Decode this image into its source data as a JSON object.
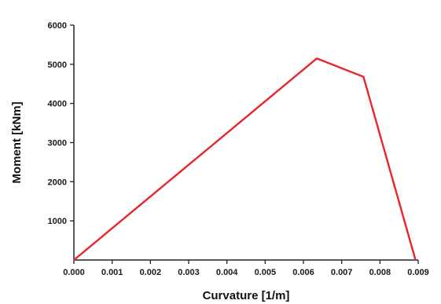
{
  "chart_data": {
    "type": "line",
    "title": "",
    "xlabel": "Curvature [1/m]",
    "ylabel": "Moment [kNm]",
    "xlim": [
      0,
      0.009
    ],
    "ylim": [
      0,
      6000
    ],
    "x_ticks": [
      "0.000",
      "0.001",
      "0.002",
      "0.003",
      "0.004",
      "0.005",
      "0.006",
      "0.007",
      "0.008",
      "0.009"
    ],
    "y_ticks": [
      "1000",
      "2000",
      "3000",
      "4000",
      "5000",
      "6000"
    ],
    "grid": false,
    "legend": "none",
    "series": [
      {
        "color": "#e8262a",
        "x": [
          0.0,
          0.00635,
          0.00757,
          0.00893
        ],
        "y": [
          0,
          5150,
          4680,
          0
        ]
      }
    ]
  }
}
